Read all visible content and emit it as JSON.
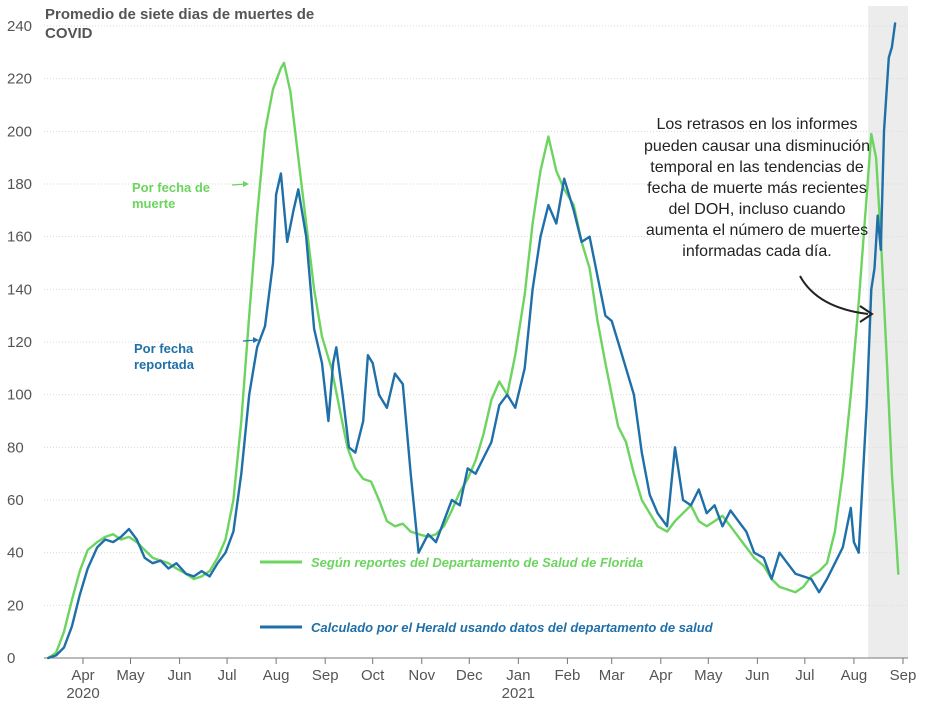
{
  "chart_data": {
    "type": "line",
    "title": "Promedio de siete dias de muertes de COVID",
    "title_lines": [
      "Promedio de siete dias de muertes de",
      "COVID"
    ],
    "ylim": [
      0,
      240
    ],
    "yticks": [
      0,
      20,
      40,
      60,
      80,
      100,
      120,
      140,
      160,
      180,
      200,
      220,
      240
    ],
    "xlim": [
      "2020-03-01",
      "2021-09-19"
    ],
    "xticks": [
      {
        "date": "2020-04-01",
        "label": "Apr",
        "year": "2020"
      },
      {
        "date": "2020-05-01",
        "label": "May"
      },
      {
        "date": "2020-06-01",
        "label": "Jun"
      },
      {
        "date": "2020-07-01",
        "label": "Jul"
      },
      {
        "date": "2020-08-01",
        "label": "Aug"
      },
      {
        "date": "2020-09-01",
        "label": "Sep"
      },
      {
        "date": "2020-10-01",
        "label": "Oct"
      },
      {
        "date": "2020-11-01",
        "label": "Nov"
      },
      {
        "date": "2020-12-01",
        "label": "Dec"
      },
      {
        "date": "2021-01-01",
        "label": "Jan",
        "year": "2021"
      },
      {
        "date": "2021-02-01",
        "label": "Feb"
      },
      {
        "date": "2021-03-01",
        "label": "Mar"
      },
      {
        "date": "2021-04-01",
        "label": "Apr"
      },
      {
        "date": "2021-05-01",
        "label": "May"
      },
      {
        "date": "2021-06-01",
        "label": "Jun"
      },
      {
        "date": "2021-07-01",
        "label": "Jul"
      },
      {
        "date": "2021-08-01",
        "label": "Aug"
      },
      {
        "date": "2021-09-01",
        "label": "Sep"
      }
    ],
    "shaded_region": {
      "from": "2021-08-10",
      "to": "2021-09-19"
    },
    "grid": true,
    "series": [
      {
        "name": "Según reportes del Departamento de Salud de Florida",
        "color": "#6cd45f",
        "points": [
          [
            "2020-03-10",
            0
          ],
          [
            "2020-03-15",
            2
          ],
          [
            "2020-03-20",
            10
          ],
          [
            "2020-03-25",
            22
          ],
          [
            "2020-03-30",
            33
          ],
          [
            "2020-04-04",
            41
          ],
          [
            "2020-04-10",
            44
          ],
          [
            "2020-04-15",
            46
          ],
          [
            "2020-04-20",
            47
          ],
          [
            "2020-04-25",
            45
          ],
          [
            "2020-04-30",
            46
          ],
          [
            "2020-05-05",
            44
          ],
          [
            "2020-05-10",
            41
          ],
          [
            "2020-05-15",
            38
          ],
          [
            "2020-05-20",
            37
          ],
          [
            "2020-05-25",
            36
          ],
          [
            "2020-05-30",
            34
          ],
          [
            "2020-06-05",
            32
          ],
          [
            "2020-06-10",
            30
          ],
          [
            "2020-06-15",
            31
          ],
          [
            "2020-06-20",
            33
          ],
          [
            "2020-06-25",
            38
          ],
          [
            "2020-06-30",
            45
          ],
          [
            "2020-07-05",
            60
          ],
          [
            "2020-07-10",
            90
          ],
          [
            "2020-07-15",
            130
          ],
          [
            "2020-07-20",
            168
          ],
          [
            "2020-07-25",
            200
          ],
          [
            "2020-07-30",
            216
          ],
          [
            "2020-08-04",
            224
          ],
          [
            "2020-08-06",
            226
          ],
          [
            "2020-08-10",
            215
          ],
          [
            "2020-08-15",
            190
          ],
          [
            "2020-08-20",
            165
          ],
          [
            "2020-08-25",
            140
          ],
          [
            "2020-08-30",
            122
          ],
          [
            "2020-09-05",
            110
          ],
          [
            "2020-09-10",
            95
          ],
          [
            "2020-09-15",
            80
          ],
          [
            "2020-09-20",
            72
          ],
          [
            "2020-09-25",
            68
          ],
          [
            "2020-09-30",
            67
          ],
          [
            "2020-10-05",
            60
          ],
          [
            "2020-10-10",
            52
          ],
          [
            "2020-10-15",
            50
          ],
          [
            "2020-10-20",
            51
          ],
          [
            "2020-10-25",
            48
          ],
          [
            "2020-10-30",
            47
          ],
          [
            "2020-11-05",
            46
          ],
          [
            "2020-11-10",
            47
          ],
          [
            "2020-11-15",
            50
          ],
          [
            "2020-11-20",
            56
          ],
          [
            "2020-11-25",
            63
          ],
          [
            "2020-11-30",
            68
          ],
          [
            "2020-12-05",
            75
          ],
          [
            "2020-12-10",
            85
          ],
          [
            "2020-12-15",
            98
          ],
          [
            "2020-12-20",
            105
          ],
          [
            "2020-12-25",
            100
          ],
          [
            "2020-12-30",
            115
          ],
          [
            "2021-01-05",
            138
          ],
          [
            "2021-01-10",
            165
          ],
          [
            "2021-01-15",
            185
          ],
          [
            "2021-01-20",
            198
          ],
          [
            "2021-01-25",
            185
          ],
          [
            "2021-01-30",
            178
          ],
          [
            "2021-02-05",
            172
          ],
          [
            "2021-02-10",
            158
          ],
          [
            "2021-02-15",
            148
          ],
          [
            "2021-02-20",
            128
          ],
          [
            "2021-02-25",
            112
          ],
          [
            "2021-03-01",
            100
          ],
          [
            "2021-03-05",
            88
          ],
          [
            "2021-03-10",
            82
          ],
          [
            "2021-03-15",
            70
          ],
          [
            "2021-03-20",
            60
          ],
          [
            "2021-03-25",
            55
          ],
          [
            "2021-03-30",
            50
          ],
          [
            "2021-04-05",
            48
          ],
          [
            "2021-04-10",
            52
          ],
          [
            "2021-04-15",
            55
          ],
          [
            "2021-04-20",
            58
          ],
          [
            "2021-04-25",
            52
          ],
          [
            "2021-04-30",
            50
          ],
          [
            "2021-05-05",
            52
          ],
          [
            "2021-05-10",
            54
          ],
          [
            "2021-05-15",
            50
          ],
          [
            "2021-05-20",
            46
          ],
          [
            "2021-05-25",
            42
          ],
          [
            "2021-05-30",
            38
          ],
          [
            "2021-06-05",
            35
          ],
          [
            "2021-06-10",
            30
          ],
          [
            "2021-06-15",
            27
          ],
          [
            "2021-06-20",
            26
          ],
          [
            "2021-06-25",
            25
          ],
          [
            "2021-06-30",
            27
          ],
          [
            "2021-07-05",
            31
          ],
          [
            "2021-07-10",
            33
          ],
          [
            "2021-07-15",
            36
          ],
          [
            "2021-07-20",
            48
          ],
          [
            "2021-07-25",
            70
          ],
          [
            "2021-07-30",
            100
          ],
          [
            "2021-08-04",
            135
          ],
          [
            "2021-08-09",
            175
          ],
          [
            "2021-08-12",
            199
          ],
          [
            "2021-08-15",
            190
          ],
          [
            "2021-08-18",
            160
          ],
          [
            "2021-08-22",
            110
          ],
          [
            "2021-08-25",
            70
          ],
          [
            "2021-08-28",
            42
          ],
          [
            "2021-08-29",
            32
          ]
        ]
      },
      {
        "name": "Calculado por el Herald usando datos del departamento de salud",
        "color": "#1f6fa8",
        "points": [
          [
            "2020-03-10",
            0
          ],
          [
            "2020-03-15",
            1
          ],
          [
            "2020-03-20",
            4
          ],
          [
            "2020-03-25",
            12
          ],
          [
            "2020-03-30",
            24
          ],
          [
            "2020-04-04",
            34
          ],
          [
            "2020-04-10",
            42
          ],
          [
            "2020-04-15",
            45
          ],
          [
            "2020-04-20",
            44
          ],
          [
            "2020-04-25",
            46
          ],
          [
            "2020-04-30",
            49
          ],
          [
            "2020-05-05",
            45
          ],
          [
            "2020-05-10",
            38
          ],
          [
            "2020-05-15",
            36
          ],
          [
            "2020-05-20",
            37
          ],
          [
            "2020-05-25",
            34
          ],
          [
            "2020-05-30",
            36
          ],
          [
            "2020-06-05",
            32
          ],
          [
            "2020-06-10",
            31
          ],
          [
            "2020-06-15",
            33
          ],
          [
            "2020-06-20",
            31
          ],
          [
            "2020-06-25",
            36
          ],
          [
            "2020-06-30",
            40
          ],
          [
            "2020-07-05",
            48
          ],
          [
            "2020-07-10",
            70
          ],
          [
            "2020-07-15",
            100
          ],
          [
            "2020-07-20",
            118
          ],
          [
            "2020-07-25",
            126
          ],
          [
            "2020-07-30",
            150
          ],
          [
            "2020-08-01",
            176
          ],
          [
            "2020-08-04",
            184
          ],
          [
            "2020-08-08",
            158
          ],
          [
            "2020-08-12",
            170
          ],
          [
            "2020-08-15",
            178
          ],
          [
            "2020-08-20",
            160
          ],
          [
            "2020-08-25",
            125
          ],
          [
            "2020-08-30",
            112
          ],
          [
            "2020-09-03",
            90
          ],
          [
            "2020-09-06",
            112
          ],
          [
            "2020-09-08",
            118
          ],
          [
            "2020-09-12",
            100
          ],
          [
            "2020-09-16",
            80
          ],
          [
            "2020-09-20",
            78
          ],
          [
            "2020-09-25",
            90
          ],
          [
            "2020-09-28",
            115
          ],
          [
            "2020-10-01",
            112
          ],
          [
            "2020-10-05",
            100
          ],
          [
            "2020-10-10",
            95
          ],
          [
            "2020-10-15",
            108
          ],
          [
            "2020-10-20",
            104
          ],
          [
            "2020-10-25",
            70
          ],
          [
            "2020-10-30",
            40
          ],
          [
            "2020-11-05",
            47
          ],
          [
            "2020-11-10",
            44
          ],
          [
            "2020-11-15",
            52
          ],
          [
            "2020-11-20",
            60
          ],
          [
            "2020-11-25",
            58
          ],
          [
            "2020-11-30",
            72
          ],
          [
            "2020-12-05",
            70
          ],
          [
            "2020-12-10",
            76
          ],
          [
            "2020-12-15",
            82
          ],
          [
            "2020-12-20",
            96
          ],
          [
            "2020-12-25",
            100
          ],
          [
            "2020-12-30",
            95
          ],
          [
            "2021-01-05",
            110
          ],
          [
            "2021-01-10",
            140
          ],
          [
            "2021-01-15",
            160
          ],
          [
            "2021-01-20",
            172
          ],
          [
            "2021-01-25",
            165
          ],
          [
            "2021-01-30",
            182
          ],
          [
            "2021-02-05",
            170
          ],
          [
            "2021-02-10",
            158
          ],
          [
            "2021-02-15",
            160
          ],
          [
            "2021-02-20",
            145
          ],
          [
            "2021-02-25",
            130
          ],
          [
            "2021-03-01",
            128
          ],
          [
            "2021-03-05",
            120
          ],
          [
            "2021-03-10",
            110
          ],
          [
            "2021-03-15",
            100
          ],
          [
            "2021-03-20",
            78
          ],
          [
            "2021-03-25",
            62
          ],
          [
            "2021-03-30",
            55
          ],
          [
            "2021-04-05",
            50
          ],
          [
            "2021-04-10",
            80
          ],
          [
            "2021-04-15",
            60
          ],
          [
            "2021-04-20",
            58
          ],
          [
            "2021-04-25",
            64
          ],
          [
            "2021-04-30",
            55
          ],
          [
            "2021-05-05",
            58
          ],
          [
            "2021-05-10",
            50
          ],
          [
            "2021-05-15",
            56
          ],
          [
            "2021-05-20",
            52
          ],
          [
            "2021-05-25",
            48
          ],
          [
            "2021-05-30",
            40
          ],
          [
            "2021-06-05",
            38
          ],
          [
            "2021-06-10",
            30
          ],
          [
            "2021-06-15",
            40
          ],
          [
            "2021-06-20",
            36
          ],
          [
            "2021-06-25",
            32
          ],
          [
            "2021-06-30",
            31
          ],
          [
            "2021-07-05",
            30
          ],
          [
            "2021-07-10",
            25
          ],
          [
            "2021-07-15",
            30
          ],
          [
            "2021-07-20",
            36
          ],
          [
            "2021-07-25",
            42
          ],
          [
            "2021-07-30",
            57
          ],
          [
            "2021-08-01",
            44
          ],
          [
            "2021-08-04",
            40
          ],
          [
            "2021-08-09",
            95
          ],
          [
            "2021-08-12",
            140
          ],
          [
            "2021-08-14",
            148
          ],
          [
            "2021-08-16",
            168
          ],
          [
            "2021-08-18",
            155
          ],
          [
            "2021-08-20",
            200
          ],
          [
            "2021-08-23",
            228
          ],
          [
            "2021-08-25",
            232
          ],
          [
            "2021-08-27",
            241
          ]
        ]
      }
    ],
    "series_labels": [
      {
        "lines": [
          "Por fecha de",
          "muerte"
        ],
        "series": 0
      },
      {
        "lines": [
          "Por fecha",
          "reportada"
        ],
        "series": 1
      }
    ],
    "legend": {
      "placement": "bottom-center",
      "entries": [
        "Según reportes del Departamento de Salud de Florida",
        "Calculado por el Herald usando datos del departamento de salud"
      ]
    },
    "annotation": {
      "lines": [
        "Los retrasos en los informes",
        "pueden causar una disminución",
        "temporal en las tendencias de",
        "fecha de muerte más recientes",
        "del DOH, incluso cuando",
        "aumenta el número de muertes",
        "informadas cada día."
      ]
    }
  }
}
